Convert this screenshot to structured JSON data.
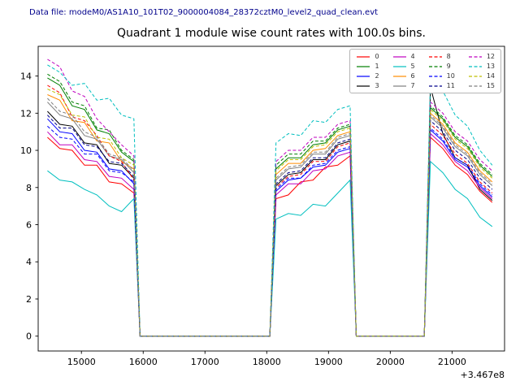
{
  "header": {
    "data_file": "Data file: modeM0/AS1A10_101T02_9000004084_28372cztM0_level2_quad_clean.evt"
  },
  "chart_data": {
    "type": "line",
    "title": "Quadrant 1 module wise count rates with 100.0s bins.",
    "xlabel": "",
    "ylabel": "",
    "x_offset_label": "+3.467e8",
    "bin_size_seconds": 100.0,
    "xlim": [
      14300,
      21850
    ],
    "ylim": [
      -0.8,
      15.6
    ],
    "xticks": [
      15000,
      16000,
      17000,
      18000,
      19000,
      20000,
      21000
    ],
    "yticks": [
      0,
      2,
      4,
      6,
      8,
      10,
      12,
      14
    ],
    "grid": false,
    "legend": {
      "position": "upper right",
      "columns": 4
    },
    "x": [
      14450,
      14650,
      14850,
      15050,
      15250,
      15450,
      15650,
      15850,
      15950,
      18050,
      18150,
      18350,
      18550,
      18750,
      18950,
      19150,
      19350,
      19450,
      20550,
      20650,
      20850,
      21050,
      21250,
      21450,
      21650
    ],
    "series": [
      {
        "name": "0",
        "color": "#ff0000",
        "linestyle": "solid",
        "values": [
          10.7,
          10.1,
          10.0,
          9.2,
          9.2,
          8.3,
          8.2,
          7.7,
          0,
          0,
          7.4,
          7.6,
          8.3,
          8.4,
          9.1,
          9.2,
          9.7,
          0,
          0,
          10.7,
          10.1,
          9.2,
          8.7,
          7.8,
          7.2
        ]
      },
      {
        "name": "1",
        "color": "#007f00",
        "linestyle": "solid",
        "values": [
          13.9,
          13.5,
          12.4,
          12.2,
          11.1,
          10.9,
          9.9,
          9.4,
          0,
          0,
          9.0,
          9.6,
          9.6,
          10.3,
          10.4,
          11.1,
          11.3,
          0,
          0,
          12.3,
          11.7,
          10.7,
          10.2,
          9.2,
          8.6
        ]
      },
      {
        "name": "2",
        "color": "#0000ff",
        "linestyle": "solid",
        "values": [
          11.7,
          11.0,
          10.9,
          10.0,
          9.9,
          9.0,
          8.9,
          8.2,
          0,
          0,
          7.8,
          8.4,
          8.5,
          9.1,
          9.2,
          9.9,
          10.1,
          0,
          0,
          11.1,
          10.5,
          9.5,
          9.1,
          8.1,
          7.5
        ]
      },
      {
        "name": "3",
        "color": "#000000",
        "linestyle": "solid",
        "values": [
          12.1,
          11.4,
          11.3,
          10.4,
          10.3,
          9.3,
          9.2,
          8.5,
          0,
          0,
          8.1,
          8.7,
          8.8,
          9.5,
          9.5,
          10.3,
          10.5,
          0,
          0,
          13.4,
          10.9,
          9.6,
          9.2,
          7.9,
          7.3
        ]
      },
      {
        "name": "4",
        "color": "#bf00bf",
        "linestyle": "solid",
        "values": [
          11.0,
          10.3,
          10.3,
          9.5,
          9.4,
          8.6,
          8.5,
          7.9,
          0,
          0,
          7.6,
          8.2,
          8.2,
          8.9,
          9.0,
          9.7,
          9.9,
          0,
          0,
          10.9,
          10.3,
          9.4,
          8.9,
          8.0,
          7.4
        ]
      },
      {
        "name": "5",
        "color": "#00bfbf",
        "linestyle": "solid",
        "values": [
          8.9,
          8.4,
          8.3,
          7.9,
          7.6,
          7.0,
          6.7,
          7.4,
          0,
          0,
          6.3,
          6.6,
          6.5,
          7.1,
          7.0,
          7.7,
          8.4,
          0,
          0,
          9.4,
          8.8,
          7.9,
          7.4,
          6.4,
          5.9
        ]
      },
      {
        "name": "6",
        "color": "#ff8c00",
        "linestyle": "solid",
        "values": [
          13.0,
          12.7,
          11.6,
          11.5,
          10.5,
          10.4,
          9.4,
          9.0,
          0,
          0,
          8.7,
          9.3,
          9.3,
          10.0,
          10.1,
          10.8,
          11.0,
          0,
          0,
          12.0,
          11.4,
          10.4,
          9.9,
          8.9,
          8.3
        ]
      },
      {
        "name": "7",
        "color": "#7f7f7f",
        "linestyle": "solid",
        "values": [
          12.6,
          11.9,
          11.7,
          10.8,
          10.6,
          9.7,
          9.5,
          8.8,
          0,
          0,
          8.4,
          9.0,
          9.1,
          9.8,
          9.8,
          10.6,
          10.8,
          0,
          0,
          11.8,
          11.2,
          10.2,
          9.7,
          8.7,
          8.1
        ]
      },
      {
        "name": "8",
        "color": "#ff0000",
        "linestyle": "dashed",
        "values": [
          13.5,
          13.1,
          11.8,
          11.6,
          10.8,
          9.7,
          9.4,
          8.4,
          0,
          0,
          8.0,
          8.6,
          8.7,
          9.4,
          9.4,
          10.2,
          10.4,
          0,
          0,
          11.4,
          10.8,
          9.8,
          9.3,
          8.3,
          7.7
        ]
      },
      {
        "name": "9",
        "color": "#007f00",
        "linestyle": "dashed",
        "values": [
          14.1,
          13.7,
          12.6,
          12.4,
          11.2,
          11.1,
          10.0,
          9.5,
          0,
          0,
          9.2,
          9.8,
          9.8,
          10.5,
          10.5,
          11.2,
          11.4,
          0,
          0,
          12.4,
          11.8,
          10.8,
          10.3,
          9.3,
          8.7
        ]
      },
      {
        "name": "10",
        "color": "#0000ff",
        "linestyle": "dashed",
        "values": [
          11.3,
          10.7,
          10.6,
          9.8,
          9.8,
          8.9,
          8.8,
          8.3,
          0,
          0,
          7.9,
          8.5,
          8.5,
          9.2,
          9.3,
          10.0,
          10.2,
          0,
          0,
          11.2,
          10.6,
          9.6,
          9.2,
          8.2,
          7.6
        ]
      },
      {
        "name": "11",
        "color": "#00008b",
        "linestyle": "dashed",
        "values": [
          11.9,
          11.2,
          11.2,
          10.3,
          10.2,
          9.4,
          9.3,
          8.6,
          0,
          0,
          8.2,
          8.8,
          8.9,
          9.6,
          9.6,
          10.4,
          10.6,
          0,
          0,
          11.6,
          11.0,
          10.0,
          9.5,
          8.5,
          7.9
        ]
      },
      {
        "name": "12",
        "color": "#bf00bf",
        "linestyle": "dashed",
        "values": [
          14.9,
          14.5,
          13.2,
          12.9,
          11.7,
          11.0,
          10.3,
          9.7,
          0,
          0,
          9.4,
          10.0,
          10.0,
          10.7,
          10.7,
          11.4,
          11.6,
          0,
          0,
          12.6,
          12.0,
          11.0,
          10.5,
          9.5,
          8.9
        ]
      },
      {
        "name": "13",
        "color": "#00bfbf",
        "linestyle": "dashed",
        "values": [
          14.6,
          14.2,
          13.5,
          13.6,
          12.7,
          12.8,
          11.9,
          11.7,
          0,
          0,
          10.4,
          10.9,
          10.8,
          11.6,
          11.5,
          12.2,
          12.4,
          0,
          0,
          13.9,
          13.2,
          11.9,
          11.3,
          10.0,
          9.2
        ]
      },
      {
        "name": "14",
        "color": "#bfbf00",
        "linestyle": "dashed",
        "values": [
          13.3,
          13.0,
          11.9,
          11.8,
          10.7,
          10.6,
          9.6,
          9.2,
          0,
          0,
          8.9,
          9.5,
          9.5,
          10.2,
          10.3,
          11.0,
          11.2,
          0,
          0,
          12.2,
          11.6,
          10.6,
          10.1,
          9.1,
          8.5
        ]
      },
      {
        "name": "15",
        "color": "#7f7f7f",
        "linestyle": "dashed",
        "values": [
          12.8,
          12.1,
          11.9,
          11.0,
          10.7,
          9.8,
          9.6,
          8.9,
          0,
          0,
          8.5,
          9.1,
          9.2,
          9.9,
          9.9,
          10.7,
          10.9,
          0,
          0,
          11.9,
          11.3,
          10.3,
          9.8,
          8.8,
          8.2
        ]
      }
    ]
  }
}
